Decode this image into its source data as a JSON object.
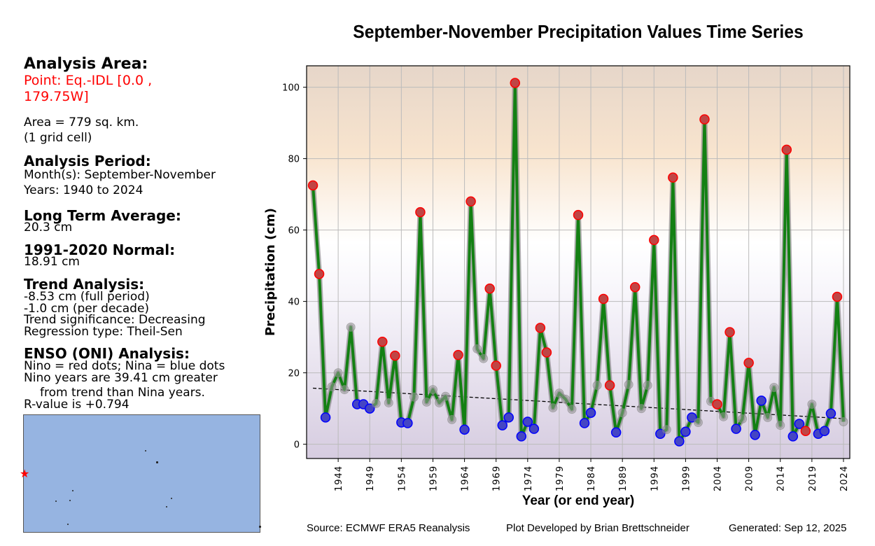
{
  "sidebar": {
    "analysis_area_heading": "Analysis Area:",
    "point_line1": "Point: Eq.-IDL [0.0 ,",
    "point_line2": "179.75W]",
    "area_line1": "Area = 779 sq. km.",
    "area_line2": "(1 grid cell)",
    "period_heading": "Analysis Period:",
    "period_months": "Month(s): September-November",
    "period_years": "Years: 1940 to 2024",
    "lta_heading": "Long Term Average:",
    "lta_value": "20.3 cm",
    "normal_heading": "1991-2020 Normal:",
    "normal_value": "18.91 cm",
    "trend_heading": "Trend Analysis:",
    "trend_full": "-8.53 cm (full period)",
    "trend_decade": "-1.0 cm (per decade)",
    "trend_significance": "Trend significance: Decreasing",
    "trend_regression": "Regression type: Theil-Sen",
    "enso_heading": "ENSO (ONI) Analysis:",
    "enso_legend": "Nino = red dots; Nina = blue dots",
    "enso_line1": "Nino years are 39.41 cm greater",
    "enso_line2": "from trend than Nina years.",
    "enso_rvalue": "R-value is +0.794"
  },
  "footer": {
    "source": "Source: ECMWF ERA5 Reanalysis",
    "developer": "Plot Developed by Brian Brettschneider",
    "generated": "Generated: Sep 12, 2025"
  },
  "colors": {
    "line": "#138013",
    "nino": "#ff0000",
    "nina": "#0000ff",
    "neutral": "#999999",
    "grid": "#bbbbbb",
    "bg_top": "#e6d6c9",
    "bg_mid": "#ffffff",
    "bg_bottom": "#d6cce0"
  },
  "chart_data": {
    "type": "line",
    "title": "September-November Precipitation Values Time Series",
    "xlabel": "Year (or end year)",
    "ylabel": "Precipitation (cm)",
    "xlim": [
      1939,
      2025
    ],
    "ylim": [
      -4,
      106
    ],
    "grid": true,
    "xticks": [
      1944,
      1949,
      1954,
      1959,
      1964,
      1969,
      1974,
      1979,
      1984,
      1989,
      1994,
      1999,
      2004,
      2009,
      2014,
      2019,
      2024
    ],
    "yticks": [
      0,
      20,
      40,
      60,
      80,
      100
    ],
    "x": [
      1940,
      1941,
      1942,
      1943,
      1944,
      1945,
      1946,
      1947,
      1948,
      1949,
      1950,
      1951,
      1952,
      1953,
      1954,
      1955,
      1956,
      1957,
      1958,
      1959,
      1960,
      1961,
      1962,
      1963,
      1964,
      1965,
      1966,
      1967,
      1968,
      1969,
      1970,
      1971,
      1972,
      1973,
      1974,
      1975,
      1976,
      1977,
      1978,
      1979,
      1980,
      1981,
      1982,
      1983,
      1984,
      1985,
      1986,
      1987,
      1988,
      1989,
      1990,
      1991,
      1992,
      1993,
      1994,
      1995,
      1996,
      1997,
      1998,
      1999,
      2000,
      2001,
      2002,
      2003,
      2004,
      2005,
      2006,
      2007,
      2008,
      2009,
      2010,
      2011,
      2012,
      2013,
      2014,
      2015,
      2016,
      2017,
      2018,
      2019,
      2020,
      2021,
      2022,
      2023,
      2024
    ],
    "series": [
      {
        "name": "Precipitation",
        "values": [
          72.5,
          47.7,
          7.5,
          16.1,
          20.0,
          15.3,
          32.8,
          11.2,
          11.2,
          10.0,
          11.4,
          28.7,
          11.6,
          24.8,
          6.1,
          5.9,
          13.2,
          65.0,
          11.8,
          15.3,
          11.6,
          13.4,
          6.9,
          25.0,
          4.1,
          68.0,
          26.7,
          24.0,
          43.6,
          22.0,
          5.3,
          7.5,
          101.2,
          2.2,
          6.3,
          4.3,
          32.6,
          25.7,
          10.2,
          14.3,
          12.6,
          9.8,
          64.2,
          5.9,
          8.8,
          16.5,
          40.7,
          16.5,
          3.3,
          8.8,
          16.7,
          44.0,
          10.0,
          16.5,
          57.2,
          2.9,
          4.1,
          74.7,
          0.8,
          3.5,
          7.5,
          6.1,
          91.0,
          12.0,
          11.2,
          7.7,
          31.4,
          4.3,
          7.1,
          22.8,
          2.6,
          12.2,
          7.5,
          15.9,
          5.3,
          82.5,
          2.2,
          5.7,
          3.7,
          11.2,
          2.9,
          3.7,
          8.6,
          41.3,
          6.3
        ],
        "enso": [
          "nino",
          "nino",
          "nina",
          "neutral",
          "neutral",
          "neutral",
          "neutral",
          "nina",
          "nina",
          "nina",
          "neutral",
          "nino",
          "neutral",
          "nino",
          "nina",
          "nina",
          "neutral",
          "nino",
          "neutral",
          "neutral",
          "neutral",
          "neutral",
          "neutral",
          "nino",
          "nina",
          "nino",
          "neutral",
          "neutral",
          "nino",
          "nino",
          "nina",
          "nina",
          "nino",
          "nina",
          "nina",
          "nina",
          "nino",
          "nino",
          "neutral",
          "neutral",
          "neutral",
          "neutral",
          "nino",
          "nina",
          "nina",
          "neutral",
          "nino",
          "nino",
          "nina",
          "neutral",
          "neutral",
          "nino",
          "neutral",
          "neutral",
          "nino",
          "nina",
          "neutral",
          "nino",
          "nina",
          "nina",
          "nina",
          "neutral",
          "nino",
          "neutral",
          "nino",
          "neutral",
          "nino",
          "nina",
          "neutral",
          "nino",
          "nina",
          "nina",
          "neutral",
          "neutral",
          "neutral",
          "nino",
          "nina",
          "nina",
          "nino",
          "neutral",
          "nina",
          "nina",
          "nina",
          "nino",
          "neutral"
        ]
      },
      {
        "name": "Trend (Theil-Sen)",
        "x": [
          1940,
          2024
        ],
        "values": [
          15.7,
          7.17
        ]
      }
    ],
    "legend": "none"
  }
}
